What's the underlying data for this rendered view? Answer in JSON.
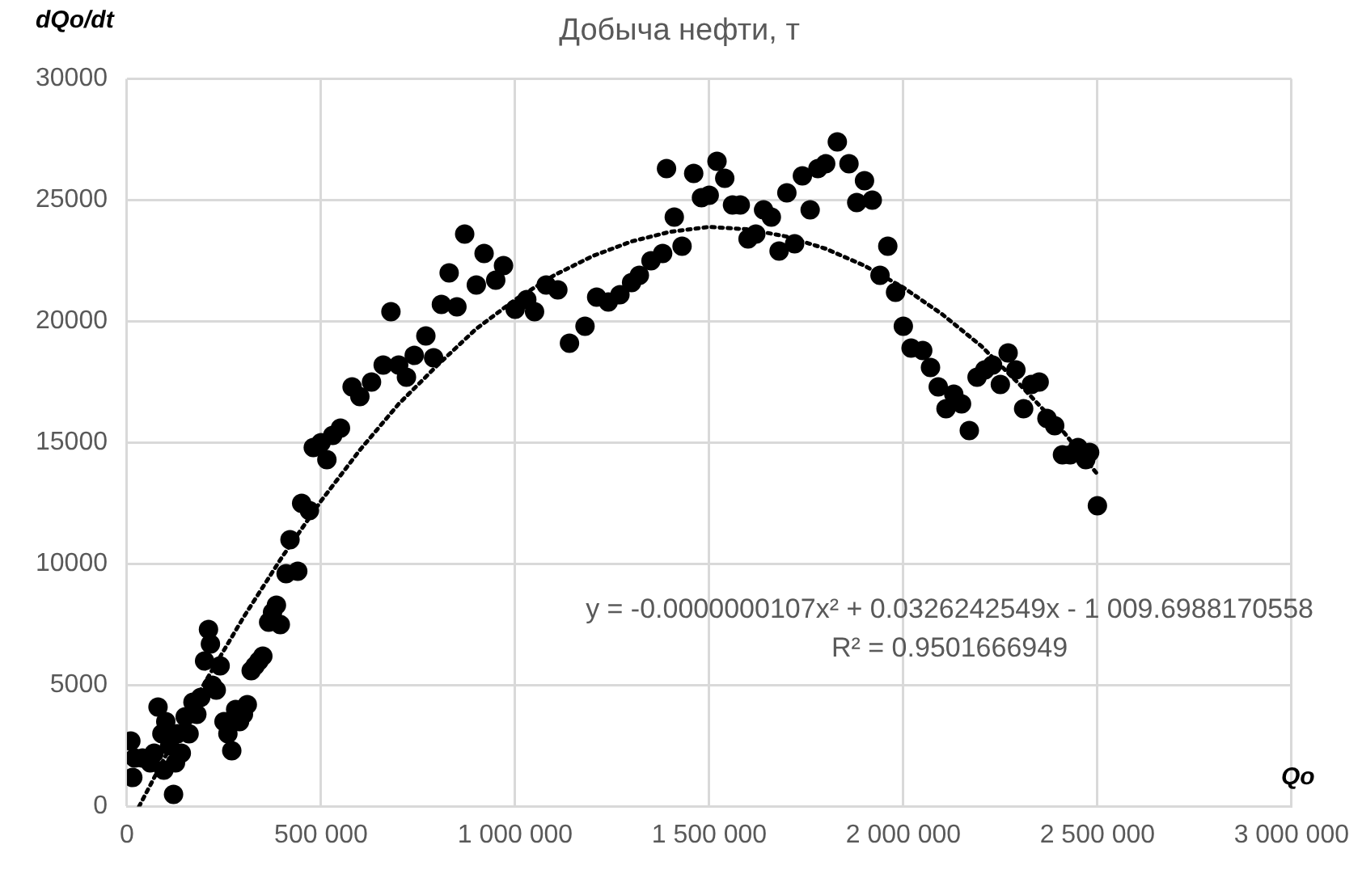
{
  "chart_data": {
    "type": "scatter",
    "title": "Добыча нефти, т",
    "xlabel": "Qo",
    "ylabel": "dQo/dt",
    "annotations": [
      "y = -0.0000000107x² + 0.0326242549x - 1 009.6988170558",
      "R² = 0.9501666949"
    ],
    "xlim": [
      0,
      3000000
    ],
    "xticks": [
      0,
      {
        "value": 500000,
        "label": "500 000"
      },
      {
        "value": 1000000,
        "label": "1 000 000"
      },
      {
        "value": 1500000,
        "label": "1 500 000"
      },
      {
        "value": 2000000,
        "label": "2 000 000"
      },
      {
        "value": 2500000,
        "label": "2 500 000"
      },
      {
        "value": 3000000,
        "label": "3 000 000"
      }
    ],
    "ylim": [
      0,
      30000
    ],
    "yticks": [
      0,
      5000,
      10000,
      15000,
      20000,
      25000,
      30000
    ],
    "grid": true,
    "legend": false,
    "series": [
      {
        "color": "#000000",
        "marker": "circle",
        "x": [
          10000,
          15000,
          20000,
          40000,
          60000,
          70000,
          80000,
          90000,
          95000,
          100000,
          110000,
          120000,
          125000,
          130000,
          140000,
          150000,
          160000,
          170000,
          180000,
          190000,
          200000,
          210000,
          215000,
          220000,
          230000,
          240000,
          250000,
          260000,
          270000,
          280000,
          290000,
          300000,
          310000,
          320000,
          330000,
          340000,
          350000,
          365000,
          375000,
          385000,
          395000,
          410000,
          420000,
          440000,
          450000,
          470000,
          480000,
          500000,
          515000,
          530000,
          550000,
          580000,
          600000,
          630000,
          660000,
          680000,
          700000,
          720000,
          740000,
          770000,
          790000,
          810000,
          830000,
          850000,
          870000,
          900000,
          920000,
          950000,
          970000,
          1000000,
          1030000,
          1050000,
          1080000,
          1110000,
          1140000,
          1180000,
          1210000,
          1240000,
          1270000,
          1300000,
          1320000,
          1350000,
          1380000,
          1390000,
          1410000,
          1430000,
          1460000,
          1480000,
          1500000,
          1520000,
          1540000,
          1560000,
          1580000,
          1600000,
          1620000,
          1640000,
          1660000,
          1680000,
          1700000,
          1720000,
          1740000,
          1760000,
          1780000,
          1800000,
          1830000,
          1860000,
          1880000,
          1900000,
          1920000,
          1940000,
          1960000,
          1980000,
          2000000,
          2020000,
          2050000,
          2070000,
          2090000,
          2110000,
          2130000,
          2150000,
          2170000,
          2190000,
          2210000,
          2230000,
          2250000,
          2270000,
          2290000,
          2310000,
          2330000,
          2350000,
          2370000,
          2390000,
          2410000,
          2430000,
          2450000,
          2470000,
          2480000,
          2500000
        ],
        "values": [
          2700,
          1200,
          2000,
          2000,
          1800,
          2200,
          4100,
          3000,
          1500,
          3500,
          2500,
          500,
          1800,
          3000,
          2200,
          3700,
          3000,
          4300,
          3800,
          4500,
          6000,
          7300,
          6700,
          5000,
          4800,
          5800,
          3500,
          3000,
          2300,
          4000,
          3500,
          3800,
          4200,
          5600,
          5800,
          6000,
          6200,
          7600,
          8000,
          8300,
          7500,
          9600,
          11000,
          9700,
          12500,
          12200,
          14800,
          15000,
          14300,
          15300,
          15600,
          17300,
          16900,
          17500,
          18200,
          20400,
          18200,
          17700,
          18600,
          19400,
          18500,
          20700,
          22000,
          20600,
          23600,
          21500,
          22800,
          21700,
          22300,
          20500,
          20900,
          20400,
          21500,
          21300,
          19100,
          19800,
          21000,
          20800,
          21100,
          21600,
          21900,
          22500,
          22800,
          26300,
          24300,
          23100,
          26100,
          25100,
          25200,
          26600,
          25900,
          24800,
          24800,
          23400,
          23600,
          24600,
          24300,
          22900,
          25300,
          23200,
          26000,
          24600,
          26300,
          26500,
          27400,
          26500,
          24900,
          25800,
          25000,
          21900,
          23100,
          21200,
          19800,
          18900,
          18800,
          18100,
          17300,
          16400,
          17000,
          16600,
          15500,
          17700,
          18000,
          18200,
          17400,
          18700,
          18000,
          16400,
          17400,
          17500,
          16000,
          15700,
          14500,
          14500,
          14800,
          14300,
          14600,
          12400
        ]
      },
      {
        "type": "line",
        "color": "#000000",
        "line_style": "dotted",
        "marker": "none",
        "x": [
          31000,
          100000,
          200000,
          300000,
          400000,
          500000,
          600000,
          700000,
          800000,
          900000,
          1000000,
          1100000,
          1200000,
          1300000,
          1400000,
          1500000,
          1600000,
          1700000,
          1800000,
          1900000,
          2000000,
          2100000,
          2200000,
          2300000,
          2400000,
          2500000
        ],
        "values": [
          0,
          2100,
          5100,
          7800,
          10300,
          12600,
          14700,
          16600,
          18200,
          19700,
          20900,
          21900,
          22700,
          23300,
          23700,
          23900,
          23800,
          23500,
          23000,
          22300,
          21400,
          20300,
          19000,
          17400,
          15700,
          13700
        ]
      }
    ]
  }
}
